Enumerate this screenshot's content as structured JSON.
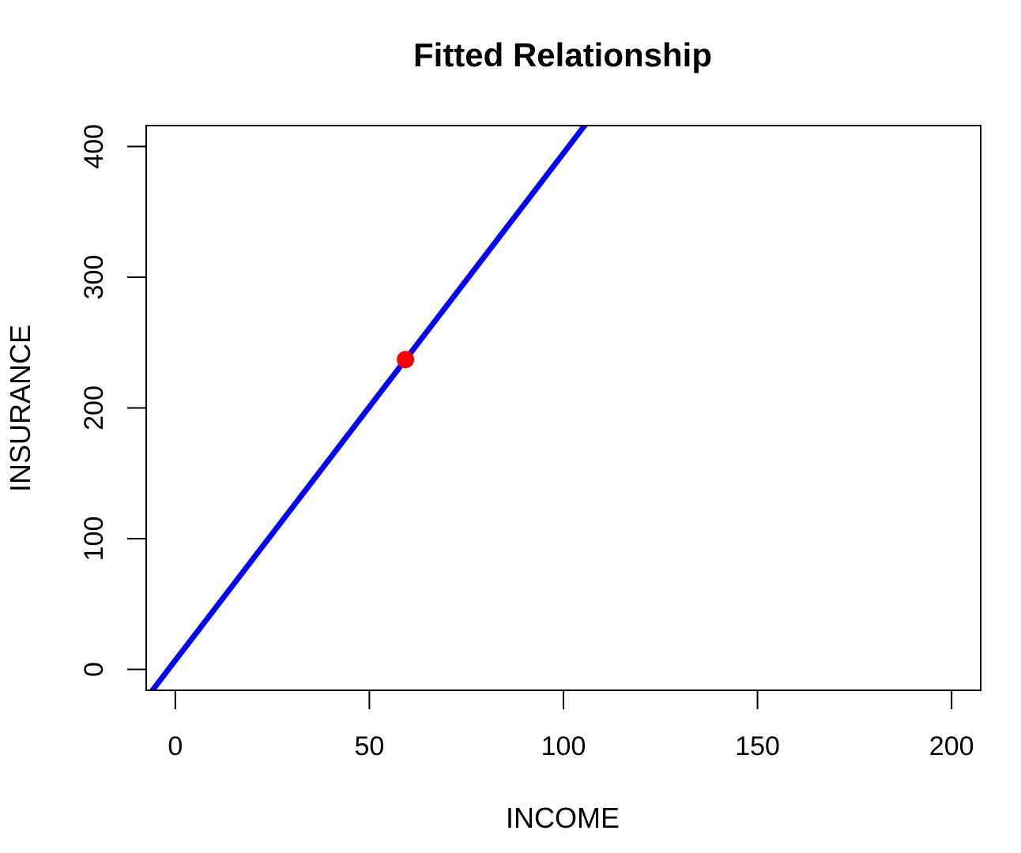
{
  "chart_data": {
    "type": "line",
    "title": "Fitted Relationship",
    "xlabel": "INCOME",
    "ylabel": "INSURANCE",
    "xlim": [
      -7.5,
      207.5
    ],
    "ylim": [
      -16,
      416
    ],
    "x_ticks": [
      0,
      50,
      100,
      150,
      200
    ],
    "y_ticks": [
      0,
      100,
      200,
      300,
      400
    ],
    "x_tick_labels": [
      "0",
      "50",
      "100",
      "150",
      "200"
    ],
    "y_tick_labels": [
      "0",
      "100",
      "200",
      "300",
      "400"
    ],
    "grid": false,
    "legend": "none",
    "series": [
      {
        "kind": "fitted-line",
        "color": "#0000ff",
        "intercept": 6.85,
        "slope": 3.88
      },
      {
        "kind": "point",
        "color": "#ff0000",
        "x": [
          59.3
        ],
        "y": [
          237
        ]
      }
    ]
  }
}
